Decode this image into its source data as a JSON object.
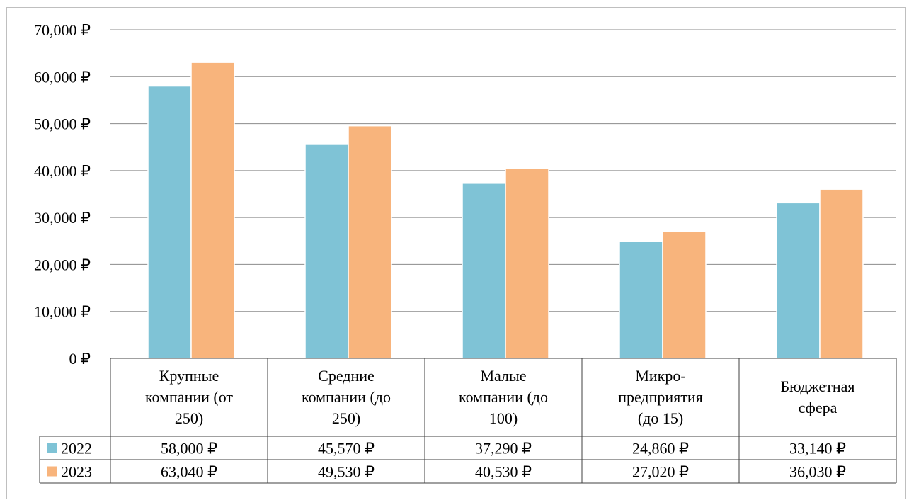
{
  "chart_data": {
    "type": "bar",
    "title": "",
    "xlabel": "",
    "ylabel": "",
    "ylim": [
      0,
      70000
    ],
    "yticks": [
      "0 ₽",
      "10,000 ₽",
      "20,000 ₽",
      "30,000 ₽",
      "40,000 ₽",
      "50,000 ₽",
      "60,000 ₽",
      "70,000 ₽"
    ],
    "grid": true,
    "legend": "data-table",
    "categories": [
      "Крупные компании (от 250)",
      "Средние компании (до 250)",
      "Малые компании (до 100)",
      "Микро-предприятия (до 15)",
      "Бюджетная сфера"
    ],
    "category_lines": [
      [
        "Крупные",
        "компании (от",
        "250)"
      ],
      [
        "Средние",
        "компании (до",
        "250)"
      ],
      [
        "Малые",
        "компании (до",
        "100)"
      ],
      [
        "Микро-",
        "предприятия",
        "(до 15)"
      ],
      [
        "Бюджетная",
        "сфера"
      ]
    ],
    "series": [
      {
        "name": "2022",
        "color": "#7fc3d6",
        "values": [
          58000,
          45570,
          37290,
          24860,
          33140
        ],
        "labels": [
          "58,000 ₽",
          "45,570 ₽",
          "37,290 ₽",
          "24,860 ₽",
          "33,140 ₽"
        ]
      },
      {
        "name": "2023",
        "color": "#f8b47c",
        "values": [
          63040,
          49530,
          40530,
          27020,
          36030
        ],
        "labels": [
          "63,040 ₽",
          "49,530 ₽",
          "40,530 ₽",
          "27,020 ₽",
          "36,030 ₽"
        ]
      }
    ]
  }
}
